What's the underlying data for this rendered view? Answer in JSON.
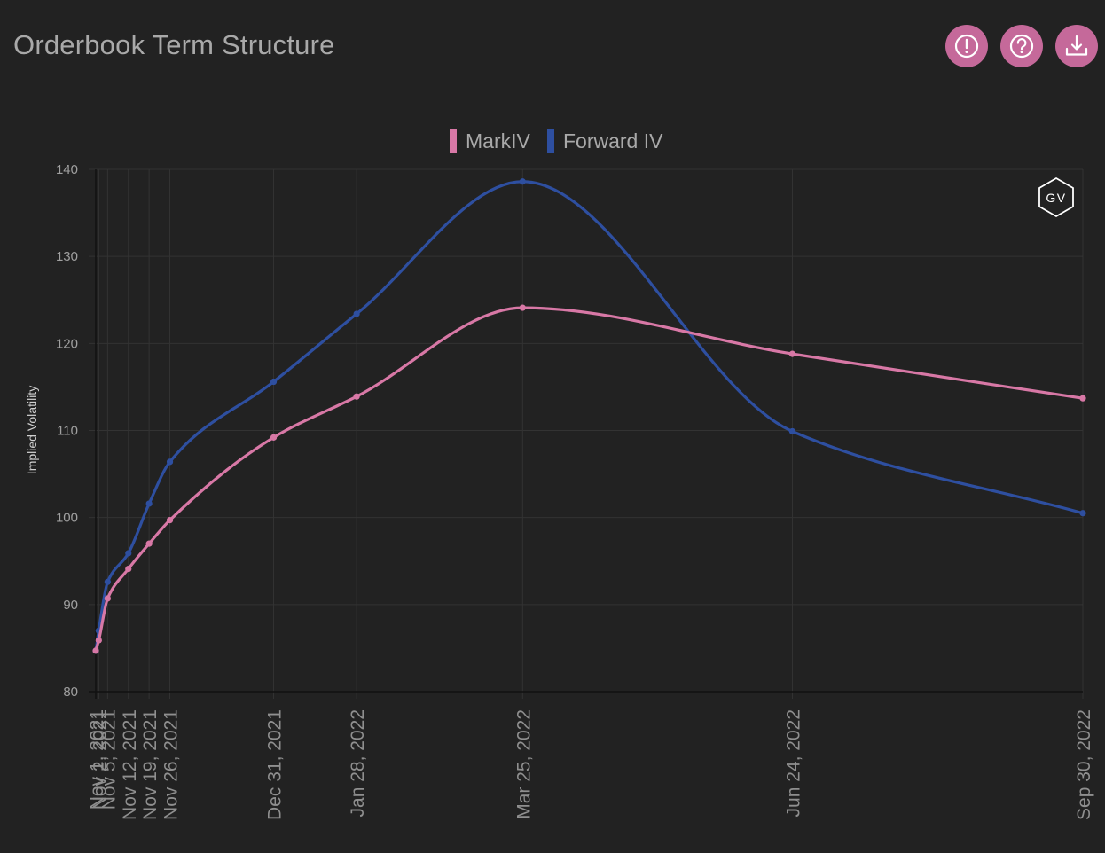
{
  "header": {
    "title": "Orderbook Term Structure",
    "buttons": [
      {
        "icon": "alert-icon"
      },
      {
        "icon": "help-icon"
      },
      {
        "icon": "download-icon"
      }
    ]
  },
  "watermark": "GV",
  "colors": {
    "background": "#222222",
    "accent": "#c5699a",
    "markiv": "#d878a6",
    "forward": "#2e4fa0",
    "grid": "#333333",
    "tick": "#a0a0a0"
  },
  "chart_data": {
    "type": "line",
    "title": "",
    "xlabel": "",
    "ylabel": "Implied Volatility",
    "ylim": [
      80,
      140
    ],
    "yticks": [
      80,
      90,
      100,
      110,
      120,
      130,
      140
    ],
    "x_scale": "time",
    "legend_position": "top-center",
    "grid": true,
    "x": [
      "Nov 1, 2021",
      "Nov 2, 2021",
      "Nov 5, 2021",
      "Nov 12, 2021",
      "Nov 19, 2021",
      "Nov 26, 2021",
      "Dec 31, 2021",
      "Jan 28, 2022",
      "Mar 25, 2022",
      "Jun 24, 2022",
      "Sep 30, 2022"
    ],
    "x_tick_labels": [
      "Nov 1, 2021",
      "Nov 2, 2021",
      "Nov 5, 2021",
      "Nov 12, 2021",
      "Nov 19, 2021",
      "Nov 26, 2021",
      "Dec 31, 2021",
      "Jan 28, 2022",
      "Mar 25, 2022",
      "Jun 24, 2022",
      "Sep 30, 2022"
    ],
    "series": [
      {
        "name": "MarkIV",
        "color": "#d878a6",
        "values": [
          84.7,
          85.9,
          90.7,
          94.1,
          97.0,
          99.7,
          109.2,
          113.9,
          124.1,
          118.8,
          113.7
        ]
      },
      {
        "name": "Forward IV",
        "color": "#2e4fa0",
        "values": [
          84.7,
          87.0,
          92.6,
          95.9,
          101.6,
          106.4,
          115.6,
          123.4,
          138.6,
          109.9,
          100.5
        ]
      }
    ]
  }
}
